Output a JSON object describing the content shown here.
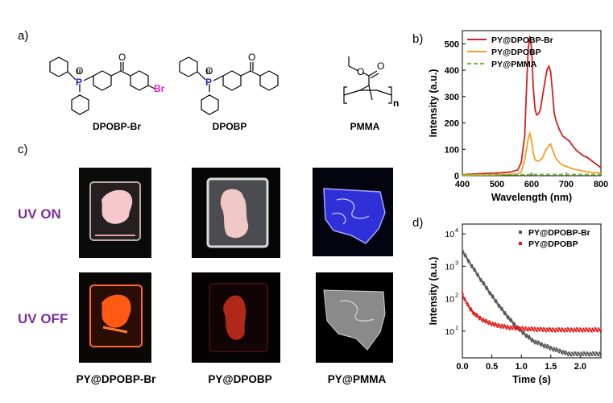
{
  "panels": {
    "a": "a)",
    "b": "b)",
    "c": "c)",
    "d": "d)"
  },
  "molecules": [
    {
      "name": "DPOBP-Br",
      "atoms": {
        "O1": "O",
        "P": "P",
        "O2": "O",
        "Br": "Br"
      }
    },
    {
      "name": "DPOBP",
      "atoms": {
        "O1": "O",
        "P": "P",
        "O2": "O"
      }
    },
    {
      "name": "PMMA",
      "atoms": {
        "O1": "O",
        "O2": "O",
        "n": "n"
      }
    }
  ],
  "colors": {
    "phosphorus": "#1f1fd0",
    "bromine": "#e020d0",
    "uv_label": "#7b2f9e"
  },
  "photos": {
    "row_labels": [
      "UV ON",
      "UV OFF"
    ],
    "column_labels": [
      "PY@DPOBP-Br",
      "PY@DPOBP",
      "PY@PMMA"
    ]
  },
  "chart_data": [
    {
      "type": "line",
      "panel": "b",
      "xlabel": "Wavelength (nm)",
      "ylabel": "Intensity (a.u.)",
      "xlim": [
        400,
        800
      ],
      "ylim": [
        0,
        550
      ],
      "xticks": [
        400,
        500,
        600,
        700,
        800
      ],
      "yticks": [
        0,
        100,
        200,
        300,
        400,
        500
      ],
      "legend": "top-right",
      "series": [
        {
          "name": "PY@DPOBP-Br",
          "color": "#d42020",
          "style": "solid",
          "x": [
            400,
            450,
            500,
            540,
            560,
            570,
            580,
            585,
            590,
            595,
            600,
            605,
            610,
            615,
            620,
            625,
            630,
            640,
            645,
            650,
            655,
            660,
            665,
            670,
            680,
            690,
            700,
            710,
            720,
            730,
            740,
            750,
            760,
            770,
            780,
            790,
            800
          ],
          "y": [
            4,
            8,
            10,
            14,
            22,
            50,
            150,
            320,
            480,
            530,
            480,
            330,
            250,
            230,
            235,
            250,
            290,
            370,
            405,
            415,
            395,
            320,
            240,
            210,
            175,
            150,
            140,
            130,
            110,
            95,
            85,
            75,
            70,
            60,
            50,
            40,
            30
          ]
        },
        {
          "name": "PY@DPOBP",
          "color": "#f0a020",
          "style": "solid",
          "x": [
            400,
            500,
            560,
            570,
            580,
            590,
            595,
            600,
            605,
            610,
            620,
            630,
            640,
            650,
            655,
            660,
            670,
            680,
            690,
            700,
            710,
            720,
            740,
            760,
            780,
            800
          ],
          "y": [
            2,
            3,
            6,
            15,
            60,
            140,
            160,
            130,
            85,
            60,
            55,
            65,
            95,
            115,
            120,
            100,
            65,
            50,
            40,
            35,
            30,
            25,
            20,
            15,
            12,
            10
          ]
        },
        {
          "name": "PY@PMMA",
          "color": "#6cc030",
          "style": "dashed",
          "x": [
            400,
            500,
            600,
            700,
            800
          ],
          "y": [
            4,
            4,
            5,
            5,
            5
          ]
        }
      ]
    },
    {
      "type": "scatter",
      "panel": "d",
      "xlabel": "Time (s)",
      "ylabel": "Intensity  (a.u.)",
      "xlim": [
        0,
        2.35
      ],
      "yscale": "log",
      "ylim": [
        1.5,
        20000
      ],
      "xticks": [
        0.0,
        0.5,
        1.0,
        1.5,
        2.0
      ],
      "yticks": [
        10,
        100,
        1000,
        10000
      ],
      "ytick_labels": [
        [
          "10",
          "1"
        ],
        [
          "10",
          "2"
        ],
        [
          "10",
          "3"
        ],
        [
          "10",
          "4"
        ]
      ],
      "legend": "top-right",
      "series": [
        {
          "name": "PY@DPOBP-Br",
          "color": "#555555",
          "marker": "square",
          "x": [
            0.0,
            0.1,
            0.2,
            0.3,
            0.4,
            0.5,
            0.6,
            0.7,
            0.8,
            0.9,
            1.0,
            1.2,
            1.5,
            1.8,
            2.1,
            2.35
          ],
          "y": [
            3000,
            1500,
            800,
            420,
            230,
            125,
            70,
            40,
            24,
            15,
            10,
            5,
            3,
            2,
            2,
            2
          ]
        },
        {
          "name": "PY@DPOBP",
          "color": "#e01818",
          "marker": "square",
          "x": [
            0.0,
            0.05,
            0.1,
            0.15,
            0.2,
            0.3,
            0.4,
            0.5,
            0.6,
            0.8,
            1.0,
            1.5,
            2.0,
            2.35
          ],
          "y": [
            150,
            90,
            60,
            45,
            35,
            25,
            20,
            17,
            15,
            13,
            12,
            11,
            11,
            11
          ]
        }
      ]
    }
  ]
}
